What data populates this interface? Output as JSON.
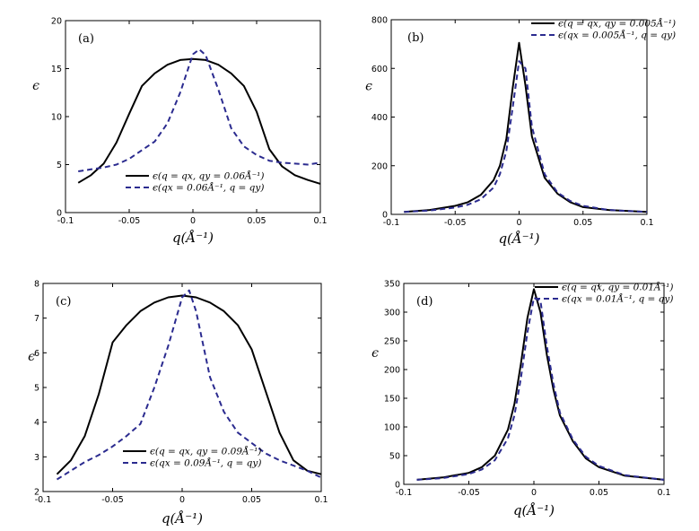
{
  "chart_data": [
    {
      "type": "line",
      "panel": "(a)",
      "xlabel": "q(Å⁻¹)",
      "ylabel": "ϵ",
      "xlim": [
        -0.1,
        0.1
      ],
      "ylim": [
        0,
        20
      ],
      "xticks": [
        "-0.1",
        "-0.05",
        "0",
        "0.05",
        "0.1"
      ],
      "yticks": [
        "0",
        "5",
        "10",
        "15",
        "20"
      ],
      "legend_position": "bottom-center",
      "series": [
        {
          "name": "ϵ(q = qx, qy = 0.06Å⁻¹)",
          "style": "solid",
          "color": "#000000",
          "x": [
            -0.09,
            -0.08,
            -0.07,
            -0.06,
            -0.05,
            -0.04,
            -0.03,
            -0.02,
            -0.01,
            0,
            0.01,
            0.02,
            0.03,
            0.04,
            0.05,
            0.06,
            0.07,
            0.08,
            0.09,
            0.1
          ],
          "y": [
            3.1,
            3.9,
            5.1,
            7.3,
            10.3,
            13.2,
            14.5,
            15.4,
            15.9,
            16.0,
            15.9,
            15.4,
            14.5,
            13.2,
            10.5,
            6.6,
            4.8,
            3.9,
            3.4,
            3.0
          ]
        },
        {
          "name": "ϵ(qx = 0.06Å⁻¹, q = qy)",
          "style": "dashed",
          "color": "#2b2b8f",
          "x": [
            -0.09,
            -0.08,
            -0.07,
            -0.06,
            -0.05,
            -0.04,
            -0.03,
            -0.02,
            -0.01,
            0,
            0.005,
            0.01,
            0.02,
            0.03,
            0.04,
            0.05,
            0.06,
            0.07,
            0.08,
            0.09,
            0.1
          ],
          "y": [
            4.3,
            4.5,
            4.7,
            5.0,
            5.6,
            6.5,
            7.4,
            9.3,
            12.5,
            16.5,
            17.0,
            16.4,
            12.8,
            8.8,
            6.9,
            6.0,
            5.4,
            5.2,
            5.1,
            5.0,
            5.2
          ]
        }
      ]
    },
    {
      "type": "line",
      "panel": "(b)",
      "xlabel": "q(Å⁻¹)",
      "ylabel": "ϵ",
      "xlim": [
        -0.1,
        0.1
      ],
      "ylim": [
        0,
        800
      ],
      "xticks": [
        "-0.1",
        "-0.05",
        "0",
        "0.05",
        "0.1"
      ],
      "yticks": [
        "0",
        "200",
        "400",
        "600",
        "800"
      ],
      "legend_position": "top-right",
      "series": [
        {
          "name": "ϵ(q = qx, qy = 0.005Å⁻¹)",
          "style": "solid",
          "color": "#000000",
          "x": [
            -0.09,
            -0.07,
            -0.05,
            -0.04,
            -0.03,
            -0.02,
            -0.015,
            -0.01,
            -0.005,
            0,
            0.005,
            0.01,
            0.02,
            0.03,
            0.04,
            0.05,
            0.07,
            0.1
          ],
          "y": [
            10,
            18,
            35,
            50,
            80,
            140,
            200,
            310,
            520,
            705,
            530,
            320,
            150,
            85,
            50,
            30,
            18,
            10
          ]
        },
        {
          "name": "ϵ(qx = 0.005Å⁻¹, q = qy)",
          "style": "dashed",
          "color": "#2b2b8f",
          "x": [
            -0.09,
            -0.07,
            -0.05,
            -0.04,
            -0.03,
            -0.02,
            -0.015,
            -0.01,
            -0.005,
            0,
            0.005,
            0.01,
            0.02,
            0.03,
            0.04,
            0.05,
            0.07,
            0.1
          ],
          "y": [
            10,
            16,
            28,
            40,
            62,
            110,
            165,
            260,
            440,
            630,
            600,
            360,
            165,
            90,
            55,
            35,
            18,
            10
          ]
        }
      ]
    },
    {
      "type": "line",
      "panel": "(c)",
      "xlabel": "q(Å⁻¹)",
      "ylabel": "ϵ",
      "xlim": [
        -0.1,
        0.1
      ],
      "ylim": [
        2,
        8
      ],
      "xticks": [
        "-0.1",
        "-0.05",
        "0",
        "0.05",
        "0.1"
      ],
      "yticks": [
        "2",
        "3",
        "4",
        "5",
        "6",
        "7",
        "8"
      ],
      "legend_position": "bottom-center",
      "series": [
        {
          "name": "ϵ(q = qx, qy = 0.09Å⁻¹)",
          "style": "solid",
          "color": "#000000",
          "x": [
            -0.09,
            -0.08,
            -0.07,
            -0.06,
            -0.05,
            -0.04,
            -0.03,
            -0.02,
            -0.01,
            0,
            0.01,
            0.02,
            0.03,
            0.04,
            0.05,
            0.06,
            0.07,
            0.08,
            0.09,
            0.1
          ],
          "y": [
            2.5,
            2.9,
            3.6,
            4.8,
            6.3,
            6.8,
            7.2,
            7.45,
            7.6,
            7.65,
            7.6,
            7.45,
            7.2,
            6.8,
            6.1,
            4.9,
            3.7,
            2.9,
            2.6,
            2.5
          ]
        },
        {
          "name": "ϵ(qx = 0.09Å⁻¹, q = qy)",
          "style": "dashed",
          "color": "#2b2b8f",
          "x": [
            -0.09,
            -0.08,
            -0.07,
            -0.06,
            -0.05,
            -0.04,
            -0.03,
            -0.02,
            -0.01,
            0,
            0.005,
            0.01,
            0.02,
            0.03,
            0.04,
            0.05,
            0.06,
            0.07,
            0.08,
            0.09,
            0.1
          ],
          "y": [
            2.35,
            2.6,
            2.85,
            3.05,
            3.3,
            3.6,
            3.95,
            5.0,
            6.2,
            7.6,
            7.8,
            7.2,
            5.3,
            4.3,
            3.7,
            3.4,
            3.1,
            2.9,
            2.75,
            2.6,
            2.4
          ]
        }
      ]
    },
    {
      "type": "line",
      "panel": "(d)",
      "xlabel": "q(Å⁻¹)",
      "ylabel": "ϵ",
      "xlim": [
        -0.1,
        0.1
      ],
      "ylim": [
        0,
        350
      ],
      "xticks": [
        "-0.1",
        "-0.05",
        "0",
        "0.05",
        "0.1"
      ],
      "yticks": [
        "0",
        "50",
        "100",
        "150",
        "200",
        "250",
        "300",
        "350"
      ],
      "legend_position": "top-right",
      "series": [
        {
          "name": "ϵ(q = qx, qy = 0.01Å⁻¹)",
          "style": "solid",
          "color": "#000000",
          "x": [
            -0.09,
            -0.07,
            -0.05,
            -0.04,
            -0.03,
            -0.02,
            -0.015,
            -0.01,
            -0.005,
            0,
            0.005,
            0.01,
            0.015,
            0.02,
            0.03,
            0.04,
            0.05,
            0.07,
            0.1
          ],
          "y": [
            8,
            12,
            20,
            30,
            50,
            95,
            140,
            210,
            290,
            340,
            300,
            225,
            165,
            120,
            75,
            45,
            30,
            15,
            8
          ]
        },
        {
          "name": "ϵ(qx = 0.01Å⁻¹, q = qy)",
          "style": "dashed",
          "color": "#2b2b8f",
          "x": [
            -0.09,
            -0.07,
            -0.05,
            -0.04,
            -0.03,
            -0.02,
            -0.015,
            -0.01,
            -0.005,
            0,
            0.005,
            0.01,
            0.015,
            0.02,
            0.03,
            0.04,
            0.05,
            0.07,
            0.1
          ],
          "y": [
            8,
            11,
            18,
            26,
            42,
            80,
            120,
            185,
            265,
            325,
            320,
            240,
            175,
            125,
            78,
            48,
            32,
            16,
            8
          ]
        }
      ]
    }
  ]
}
